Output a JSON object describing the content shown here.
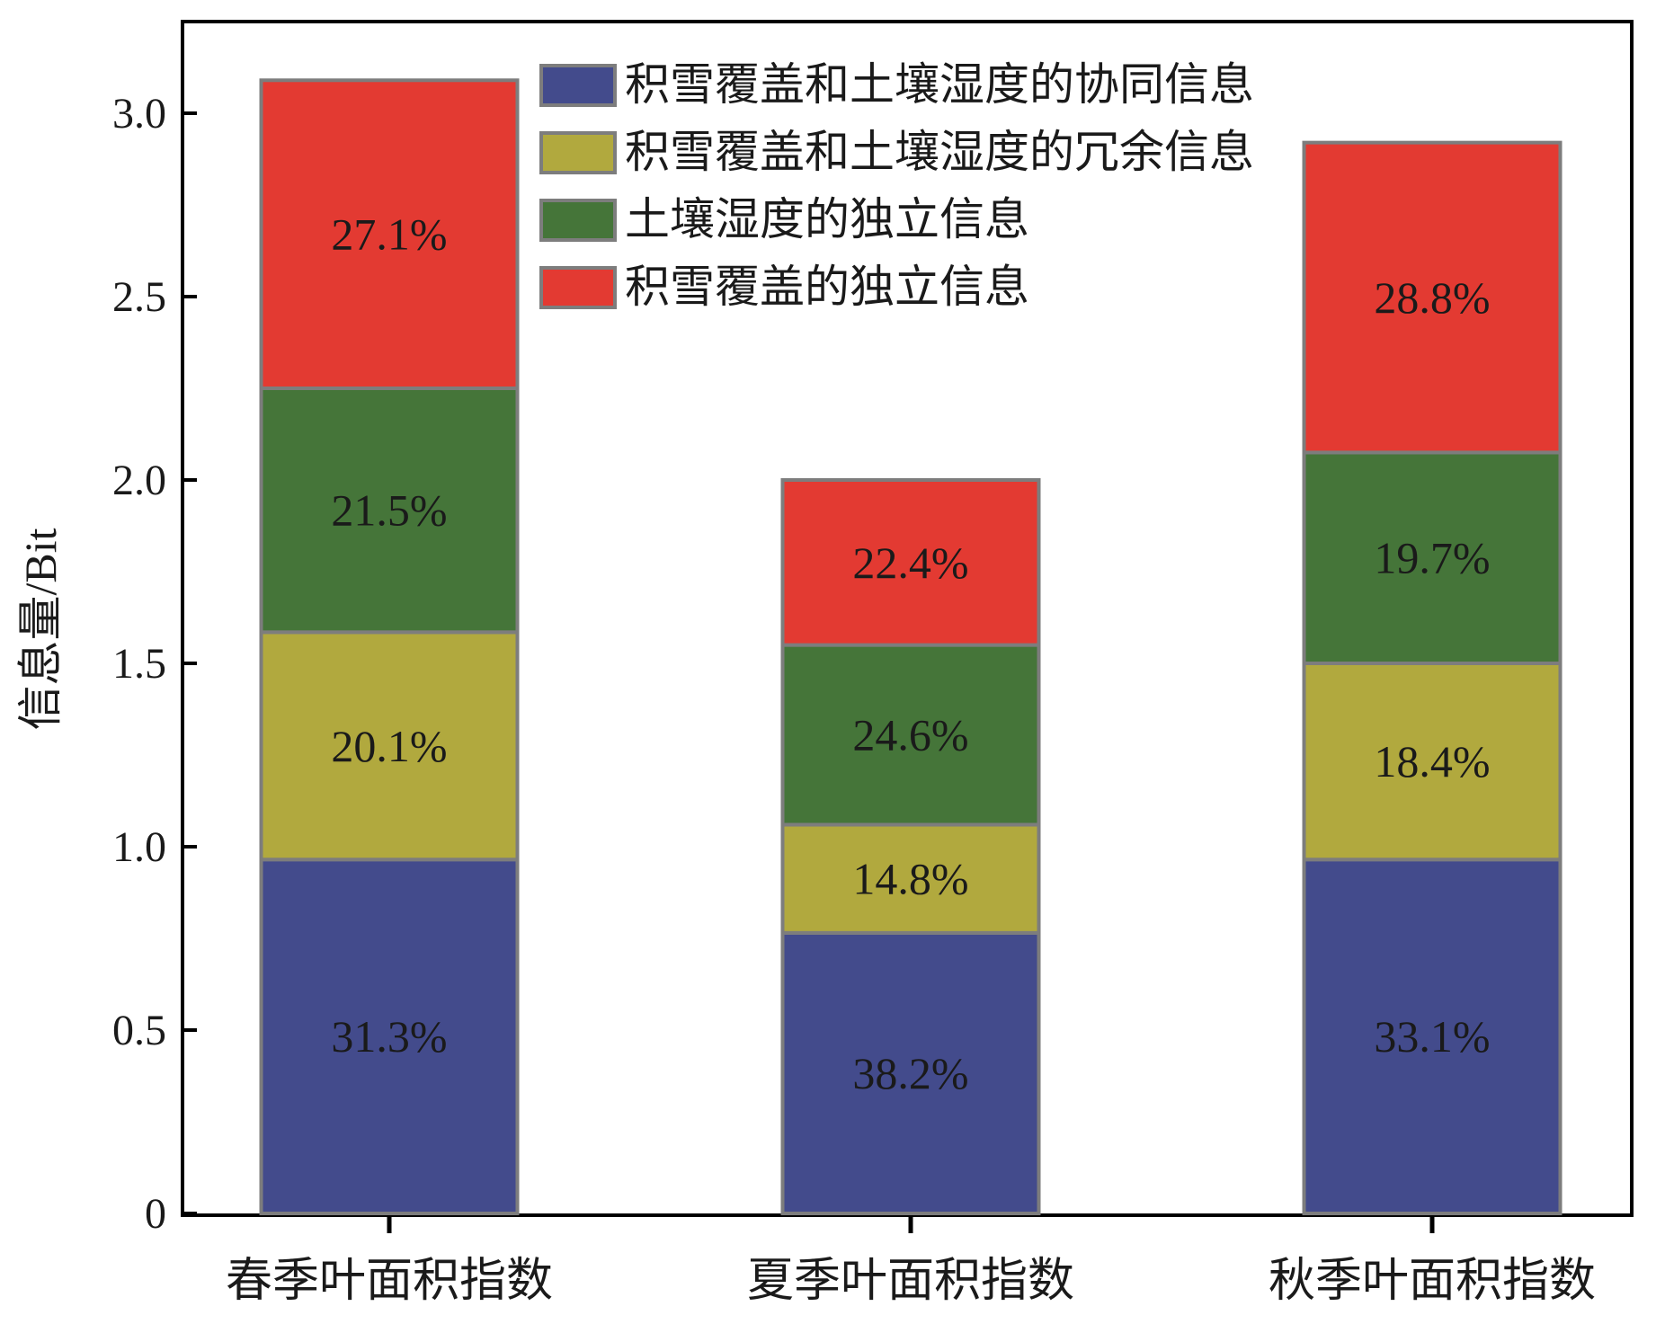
{
  "chart_data": {
    "type": "bar",
    "stacked": true,
    "title": "",
    "xlabel": "",
    "ylabel": "信息量/Bit",
    "ylim": [
      0,
      3.2
    ],
    "yticks": [
      0,
      0.5,
      1.0,
      1.5,
      2.0,
      2.5,
      3.0
    ],
    "ytick_labels": [
      "0",
      "0.5",
      "1.0",
      "1.5",
      "2.0",
      "2.5",
      "3.0"
    ],
    "grid": false,
    "legend_position": "top-center",
    "categories": [
      "春季叶面积指数",
      "夏季叶面积指数",
      "秋季叶面积指数"
    ],
    "series": [
      {
        "name": "积雪覆盖和土壤湿度的协同信息",
        "color": "#434B8C",
        "values": [
          0.965,
          0.765,
          0.965
        ],
        "labels": [
          "31.3%",
          "38.2%",
          "33.1%"
        ]
      },
      {
        "name": "积雪覆盖和土壤湿度的冗余信息",
        "color": "#B1A93E",
        "values": [
          0.62,
          0.295,
          0.535
        ],
        "labels": [
          "20.1%",
          "14.8%",
          "18.4%"
        ]
      },
      {
        "name": "土壤湿度的独立信息",
        "color": "#457539",
        "values": [
          0.665,
          0.49,
          0.575
        ],
        "labels": [
          "21.5%",
          "24.6%",
          "19.7%"
        ]
      },
      {
        "name": "积雪覆盖的独立信息",
        "color": "#E33A32",
        "values": [
          0.84,
          0.45,
          0.845
        ],
        "labels": [
          "27.1%",
          "22.4%",
          "28.8%"
        ]
      }
    ]
  }
}
